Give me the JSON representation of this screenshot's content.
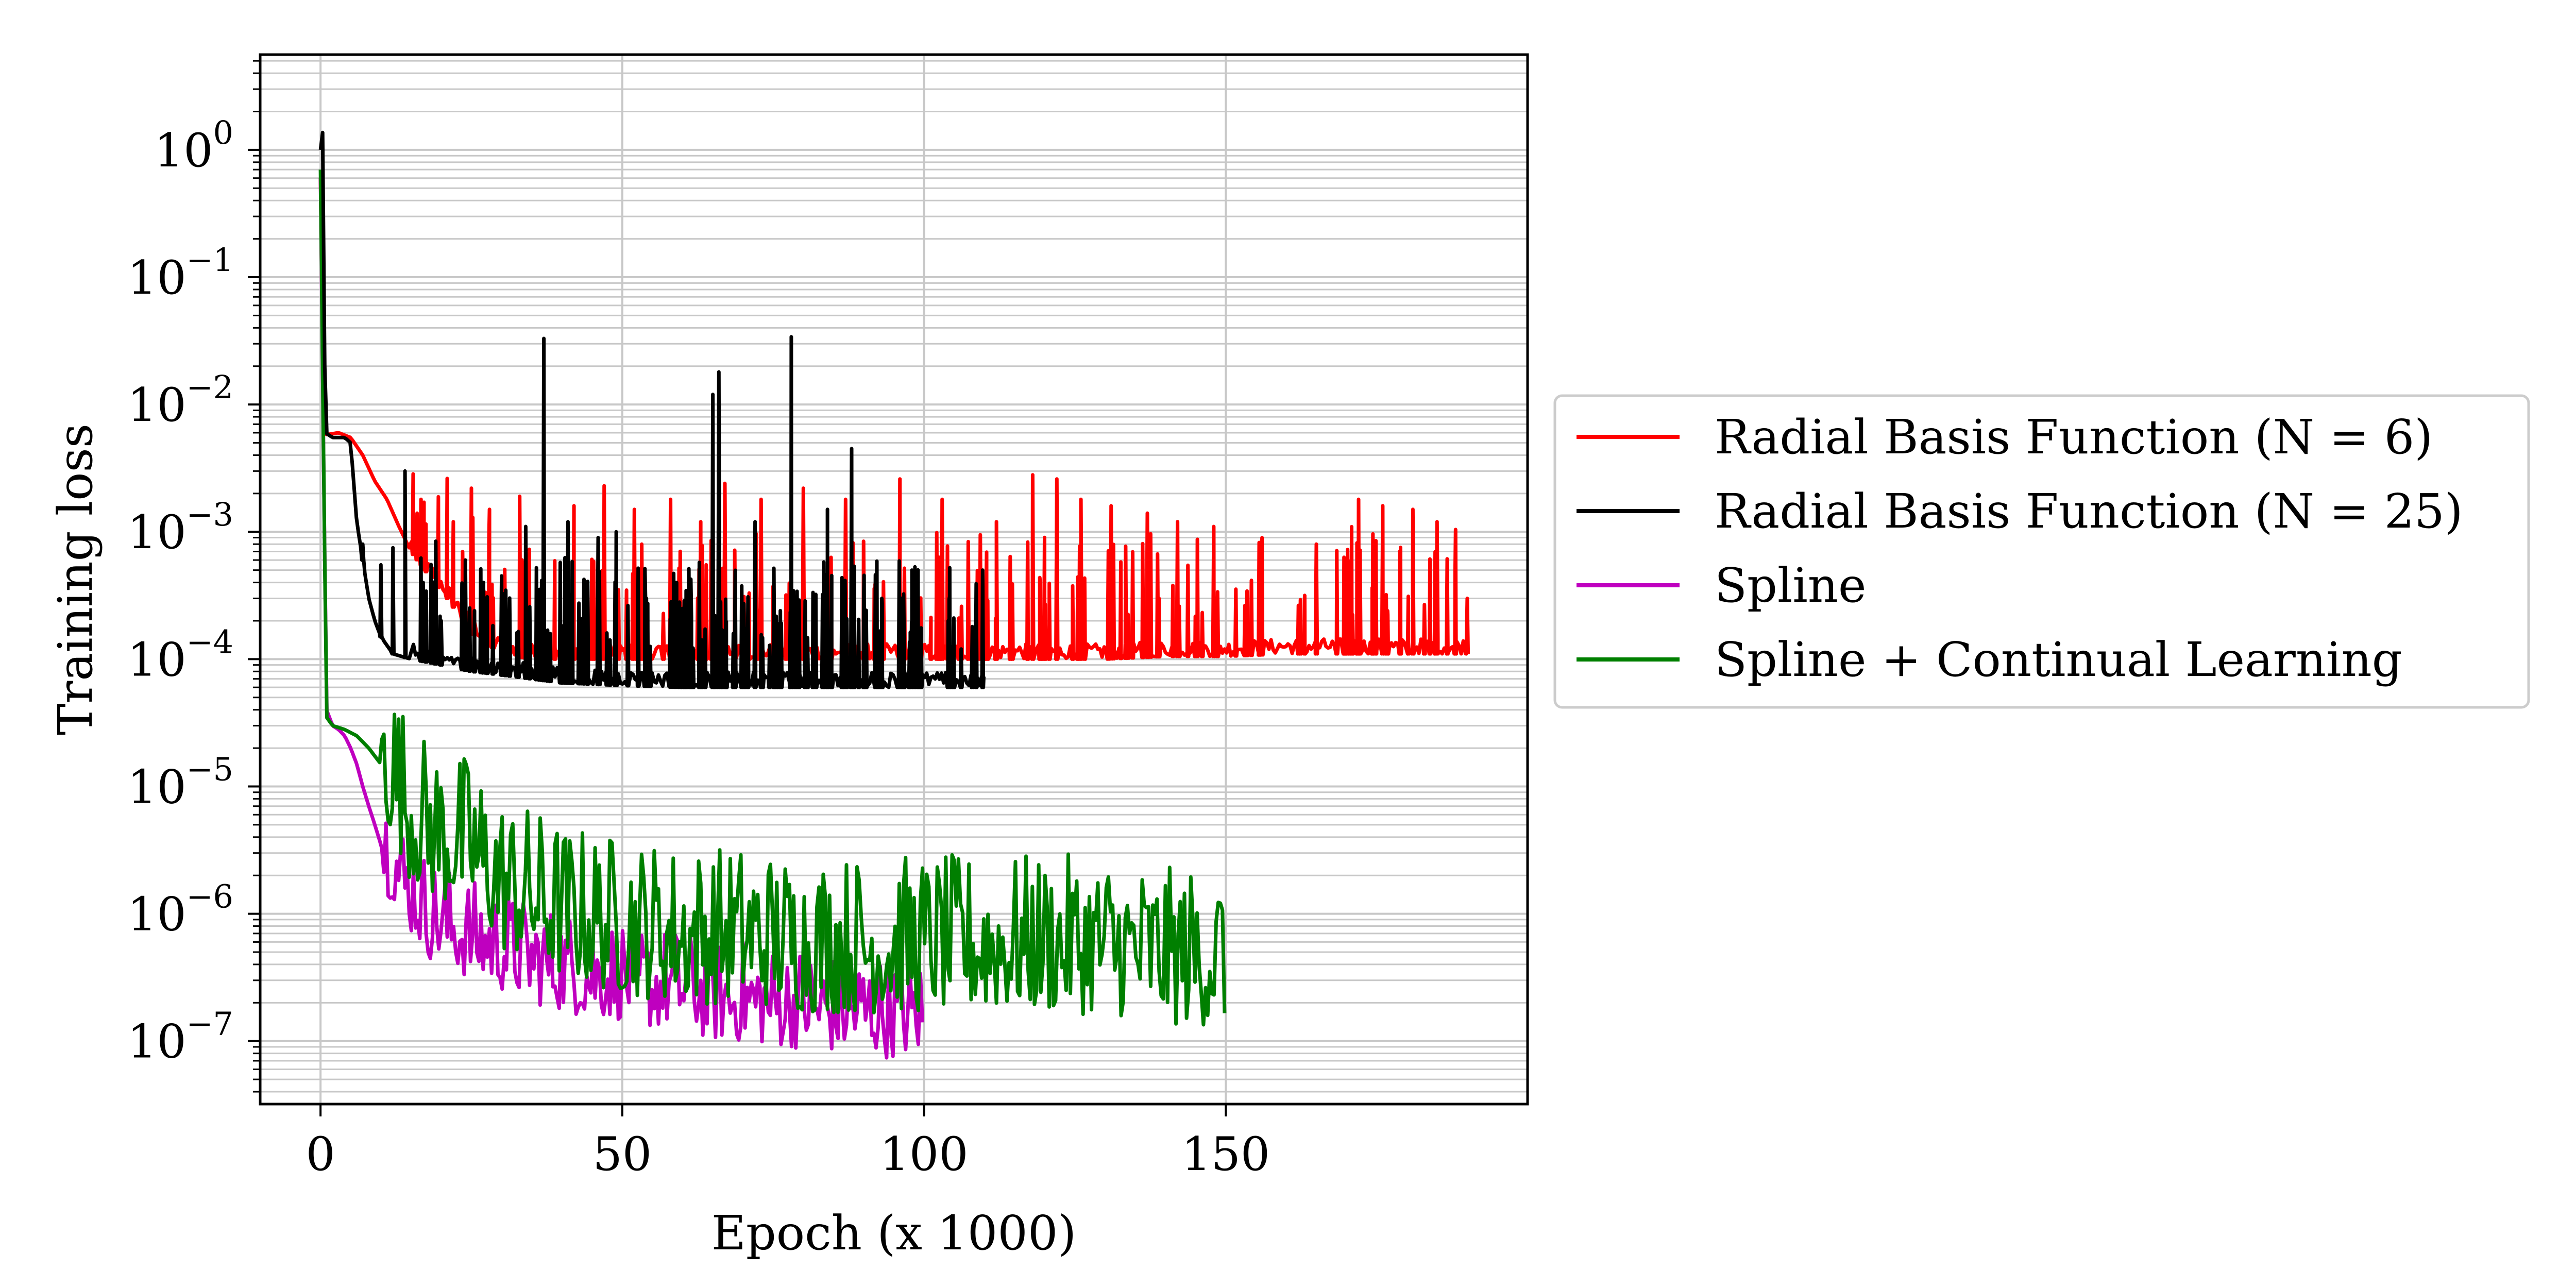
{
  "chart_data": {
    "type": "line",
    "xlabel": "Epoch (x 1000)",
    "ylabel": "Training loss",
    "yscale": "log",
    "xlim": [
      -10,
      200
    ],
    "ylim": [
      3.2e-08,
      5.6
    ],
    "xticks": [
      0,
      50,
      100,
      150
    ],
    "xtick_labels": [
      "0",
      "50",
      "100",
      "150"
    ],
    "yticks": [
      {
        "value": 1,
        "base": "10",
        "exponent": "0"
      },
      {
        "value": 0.1,
        "base": "10",
        "exponent": "−1"
      },
      {
        "value": 0.01,
        "base": "10",
        "exponent": "−2"
      },
      {
        "value": 0.001,
        "base": "10",
        "exponent": "−3"
      },
      {
        "value": 0.0001,
        "base": "10",
        "exponent": "−4"
      },
      {
        "value": 1e-05,
        "base": "10",
        "exponent": "−5"
      },
      {
        "value": 1e-06,
        "base": "10",
        "exponent": "−6"
      },
      {
        "value": 1e-07,
        "base": "10",
        "exponent": "−7"
      }
    ],
    "grid": "major and minor",
    "legend_position": "right, outside plot",
    "series": [
      {
        "name": "Radial Basis Function (N = 6)",
        "color": "#ff0000",
        "description": "noisy plateau near 1e-4 with spikes up to ~3e-3",
        "x": [
          0,
          0.5,
          1,
          3,
          5,
          7,
          9,
          11,
          13,
          15,
          18,
          21,
          25,
          30,
          35,
          40,
          50,
          60,
          70,
          80,
          90,
          100,
          110,
          120,
          130,
          140,
          150,
          160,
          170,
          180,
          190
        ],
        "y": [
          0.6,
          0.006,
          0.0058,
          0.006,
          0.0055,
          0.004,
          0.0025,
          0.0018,
          0.0011,
          0.0007,
          0.00045,
          0.0003,
          0.00016,
          0.00011,
          0.0001,
          0.0001,
          0.0001,
          0.0001,
          0.0001,
          0.0001,
          0.0001,
          0.0001,
          0.0001,
          0.0001,
          0.0001,
          0.000105,
          0.000105,
          0.00011,
          0.00011,
          0.00011,
          0.00011
        ],
        "spikes": [
          [
            16,
            0.0014
          ],
          [
            22,
            0.0012
          ],
          [
            25,
            0.0022
          ],
          [
            28,
            0.0015
          ],
          [
            33,
            0.0019
          ],
          [
            37,
            0.002
          ],
          [
            42,
            0.0016
          ],
          [
            47,
            0.0023
          ],
          [
            52,
            0.0015
          ],
          [
            58,
            0.0018
          ],
          [
            63,
            0.0012
          ],
          [
            67,
            0.0024
          ],
          [
            73,
            0.0018
          ],
          [
            80,
            0.0022
          ],
          [
            87,
            0.0018
          ],
          [
            96,
            0.0026
          ],
          [
            103,
            0.0018
          ],
          [
            112,
            0.0012
          ],
          [
            118,
            0.0028
          ],
          [
            122,
            0.0026
          ],
          [
            126,
            0.0018
          ],
          [
            131,
            0.0016
          ],
          [
            137,
            0.0014
          ],
          [
            142,
            0.0012
          ],
          [
            148,
            0.0011
          ],
          [
            156,
            0.0009
          ],
          [
            165,
            0.0008
          ],
          [
            172,
            0.0018
          ],
          [
            176,
            0.0016
          ],
          [
            181,
            0.0015
          ],
          [
            185,
            0.0012
          ],
          [
            188,
            0.0005
          ],
          [
            190,
            0.0003
          ]
        ]
      },
      {
        "name": "Radial Basis Function (N = 25)",
        "color": "#000000",
        "description": "plateau near 6e-5 with large spikes",
        "x": [
          0,
          0.3,
          0.8,
          2,
          4,
          5,
          6,
          7,
          8,
          9,
          10,
          12,
          15,
          20,
          25,
          30,
          40,
          50,
          60,
          70,
          80,
          90,
          100,
          110
        ],
        "y": [
          1.0,
          2.5,
          0.006,
          0.0055,
          0.0055,
          0.005,
          0.0012,
          0.0006,
          0.0003,
          0.0002,
          0.00015,
          0.00011,
          0.0001,
          9e-05,
          8e-05,
          7.5e-05,
          6.5e-05,
          6.2e-05,
          6e-05,
          6e-05,
          6e-05,
          6e-05,
          6e-05,
          6e-05
        ],
        "spikes": [
          [
            7,
            0.0008
          ],
          [
            10,
            0.00055
          ],
          [
            12,
            0.00075
          ],
          [
            14,
            0.003
          ],
          [
            17,
            0.0004
          ],
          [
            20,
            0.0002
          ],
          [
            24,
            0.0006
          ],
          [
            27,
            0.0004
          ],
          [
            30,
            0.00045
          ],
          [
            34,
            0.0011
          ],
          [
            37,
            0.033
          ],
          [
            41,
            0.0012
          ],
          [
            46,
            0.0009
          ],
          [
            49,
            0.001
          ],
          [
            54,
            0.0003
          ],
          [
            59,
            0.0004
          ],
          [
            65,
            0.012
          ],
          [
            66,
            0.018
          ],
          [
            72,
            0.0012
          ],
          [
            78,
            0.034
          ],
          [
            84,
            0.0015
          ],
          [
            88,
            0.0045
          ],
          [
            93,
            0.0003
          ],
          [
            98,
            0.0005
          ],
          [
            104,
            0.0002
          ],
          [
            108,
            0.00018
          ]
        ]
      },
      {
        "name": "Spline",
        "color": "#bf00bf",
        "description": "decays to ~2e-7 with noise",
        "x": [
          0,
          0.5,
          1,
          2,
          3,
          4,
          5,
          6,
          7,
          8,
          9,
          10,
          12,
          14,
          16,
          18,
          20,
          25,
          30,
          35,
          40,
          45,
          50,
          55,
          60,
          65,
          70,
          75,
          80,
          85,
          90,
          95,
          100
        ],
        "y": [
          0.6,
          0.004,
          4e-05,
          3e-05,
          2.8e-05,
          2.5e-05,
          2e-05,
          1.5e-05,
          1e-05,
          7e-06,
          5e-06,
          3.5e-06,
          2.5e-06,
          1.6e-06,
          1.2e-06,
          9e-07,
          8e-07,
          6e-07,
          5e-07,
          4e-07,
          3.5e-07,
          3e-07,
          3e-07,
          2.5e-07,
          2.5e-07,
          2e-07,
          2e-07,
          1.8e-07,
          1.8e-07,
          1.6e-07,
          1.6e-07,
          1.5e-07,
          1.5e-07
        ],
        "noise_decades": 0.45
      },
      {
        "name": "Spline + Continual Learning",
        "color": "#007f00",
        "description": "decays to ~5e-7 with large noise, ends at 150",
        "x": [
          0,
          0.5,
          1,
          2,
          4,
          6,
          8,
          10,
          12,
          15,
          18,
          20,
          25,
          30,
          35,
          40,
          45,
          50,
          60,
          70,
          80,
          90,
          100,
          110,
          120,
          130,
          140,
          150
        ],
        "y": [
          0.7,
          0.004,
          3.5e-05,
          3e-05,
          2.8e-05,
          2.5e-05,
          2e-05,
          1.5e-05,
          1.2e-05,
          5.5e-06,
          4e-06,
          3.5e-06,
          3e-06,
          1.5e-06,
          1.2e-06,
          9e-07,
          8e-07,
          7e-07,
          6e-07,
          6e-07,
          5e-07,
          5e-07,
          5e-07,
          5e-07,
          5e-07,
          5e-07,
          4e-07,
          4e-07
        ],
        "noise_decades": 0.7
      }
    ]
  }
}
